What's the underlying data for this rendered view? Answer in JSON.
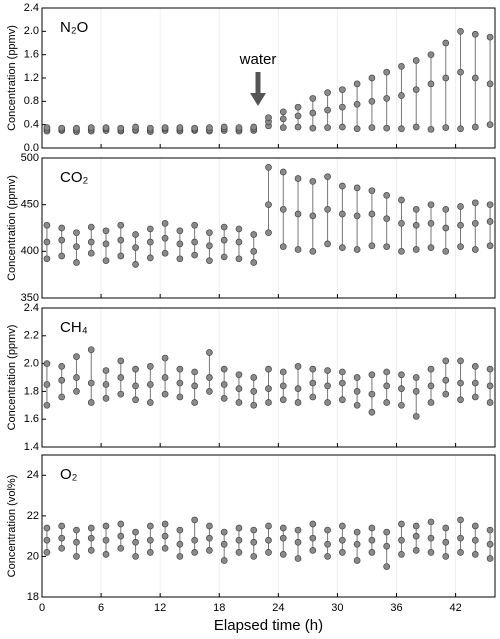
{
  "chart_data": [
    {
      "type": "scatter",
      "label": "N₂O",
      "y_label": "Concentration (ppmv)",
      "annotation": "water",
      "xlim": [
        0,
        46
      ],
      "xticks": [
        0,
        6,
        12,
        18,
        24,
        30,
        36,
        42
      ],
      "ylim": [
        0,
        2.4
      ],
      "yticks": [
        {
          "value": 0,
          "label": "0.0"
        },
        0.4,
        0.8,
        1.2,
        1.6,
        {
          "value": 2,
          "label": "2.0"
        },
        2.4
      ],
      "grid": true,
      "color": "#8a8a8a",
      "x": [
        0.5,
        2,
        3.5,
        5,
        6.5,
        8,
        9.5,
        11,
        12.5,
        14,
        15.5,
        17,
        18.5,
        20,
        21.5,
        23,
        24.5,
        26,
        27.5,
        29,
        30.5,
        32,
        33.5,
        35,
        36.5,
        38,
        39.5,
        41,
        42.5,
        44,
        45.5
      ],
      "values": [
        [
          0.29,
          0.32,
          0.35
        ],
        [
          0.3,
          0.32,
          0.34
        ],
        [
          0.28,
          0.31,
          0.34
        ],
        [
          0.29,
          0.32,
          0.35
        ],
        [
          0.3,
          0.33,
          0.35
        ],
        [
          0.29,
          0.31,
          0.34
        ],
        [
          0.3,
          0.32,
          0.36
        ],
        [
          0.28,
          0.31,
          0.34
        ],
        [
          0.3,
          0.33,
          0.35
        ],
        [
          0.29,
          0.32,
          0.35
        ],
        [
          0.3,
          0.32,
          0.34
        ],
        [
          0.29,
          0.31,
          0.35
        ],
        [
          0.3,
          0.33,
          0.36
        ],
        [
          0.29,
          0.32,
          0.35
        ],
        [
          0.3,
          0.33,
          0.36
        ],
        [
          0.38,
          0.45,
          0.52
        ],
        [
          0.35,
          0.5,
          0.62
        ],
        [
          0.36,
          0.55,
          0.7
        ],
        [
          0.34,
          0.6,
          0.85
        ],
        [
          0.35,
          0.65,
          0.95
        ],
        [
          0.36,
          0.7,
          1.0
        ],
        [
          0.33,
          0.75,
          1.1
        ],
        [
          0.35,
          0.8,
          1.2
        ],
        [
          0.34,
          0.85,
          1.3
        ],
        [
          0.33,
          0.9,
          1.4
        ],
        [
          0.36,
          1.0,
          1.5
        ],
        [
          0.32,
          1.1,
          1.6
        ],
        [
          0.35,
          1.2,
          1.8
        ],
        [
          0.33,
          1.3,
          2.0
        ],
        [
          0.36,
          1.2,
          1.95
        ],
        [
          0.4,
          1.1,
          1.9
        ]
      ]
    },
    {
      "type": "scatter",
      "label": "CO₂",
      "y_label": "Concentration (ppmv)",
      "xlim": [
        0,
        46
      ],
      "xticks": [
        0,
        6,
        12,
        18,
        24,
        30,
        36,
        42
      ],
      "ylim": [
        350,
        500
      ],
      "yticks": [
        350,
        400,
        450,
        500
      ],
      "grid": true,
      "color": "#8a8a8a",
      "x": [
        0.5,
        2,
        3.5,
        5,
        6.5,
        8,
        9.5,
        11,
        12.5,
        14,
        15.5,
        17,
        18.5,
        20,
        21.5,
        23,
        24.5,
        26,
        27.5,
        29,
        30.5,
        32,
        33.5,
        35,
        36.5,
        38,
        39.5,
        41,
        42.5,
        44,
        45.5
      ],
      "values": [
        [
          392,
          410,
          428
        ],
        [
          395,
          412,
          425
        ],
        [
          388,
          405,
          420
        ],
        [
          398,
          410,
          426
        ],
        [
          390,
          408,
          422
        ],
        [
          395,
          412,
          428
        ],
        [
          386,
          404,
          418
        ],
        [
          393,
          410,
          424
        ],
        [
          398,
          414,
          430
        ],
        [
          392,
          408,
          422
        ],
        [
          396,
          410,
          428
        ],
        [
          390,
          406,
          420
        ],
        [
          394,
          412,
          426
        ],
        [
          392,
          410,
          424
        ],
        [
          388,
          400,
          418
        ],
        [
          420,
          450,
          490
        ],
        [
          405,
          445,
          485
        ],
        [
          402,
          440,
          478
        ],
        [
          400,
          438,
          475
        ],
        [
          408,
          445,
          480
        ],
        [
          404,
          440,
          470
        ],
        [
          402,
          438,
          468
        ],
        [
          406,
          440,
          465
        ],
        [
          405,
          435,
          460
        ],
        [
          400,
          430,
          455
        ],
        [
          402,
          428,
          445
        ],
        [
          404,
          430,
          450
        ],
        [
          400,
          425,
          445
        ],
        [
          405,
          428,
          448
        ],
        [
          402,
          430,
          452
        ],
        [
          406,
          432,
          450
        ]
      ]
    },
    {
      "type": "scatter",
      "label": "CH₄",
      "y_label": "Concentration (ppmv)",
      "xlim": [
        0,
        46
      ],
      "xticks": [
        0,
        6,
        12,
        18,
        24,
        30,
        36,
        42
      ],
      "ylim": [
        1.4,
        2.4
      ],
      "yticks": [
        1.4,
        1.6,
        1.8,
        {
          "value": 2,
          "label": "2.0"
        },
        2.2,
        2.4
      ],
      "grid": true,
      "color": "#8a8a8a",
      "x": [
        0.5,
        2,
        3.5,
        5,
        6.5,
        8,
        9.5,
        11,
        12.5,
        14,
        15.5,
        17,
        18.5,
        20,
        21.5,
        23,
        24.5,
        26,
        27.5,
        29,
        30.5,
        32,
        33.5,
        35,
        36.5,
        38,
        39.5,
        41,
        42.5,
        44,
        45.5
      ],
      "values": [
        [
          1.7,
          1.85,
          2.0
        ],
        [
          1.76,
          1.88,
          1.98
        ],
        [
          1.8,
          1.9,
          2.05
        ],
        [
          1.72,
          1.86,
          2.1
        ],
        [
          1.75,
          1.85,
          1.95
        ],
        [
          1.78,
          1.9,
          2.02
        ],
        [
          1.74,
          1.84,
          1.96
        ],
        [
          1.72,
          1.85,
          1.98
        ],
        [
          1.78,
          1.9,
          2.04
        ],
        [
          1.76,
          1.86,
          1.96
        ],
        [
          1.72,
          1.84,
          1.94
        ],
        [
          1.8,
          1.9,
          2.08
        ],
        [
          1.75,
          1.85,
          1.96
        ],
        [
          1.72,
          1.82,
          1.92
        ],
        [
          1.7,
          1.8,
          1.9
        ],
        [
          1.72,
          1.82,
          1.96
        ],
        [
          1.74,
          1.84,
          1.94
        ],
        [
          1.72,
          1.82,
          1.98
        ],
        [
          1.76,
          1.86,
          1.96
        ],
        [
          1.72,
          1.84,
          1.95
        ],
        [
          1.74,
          1.86,
          1.94
        ],
        [
          1.7,
          1.8,
          1.9
        ],
        [
          1.65,
          1.78,
          1.92
        ],
        [
          1.72,
          1.84,
          1.94
        ],
        [
          1.7,
          1.82,
          1.92
        ],
        [
          1.62,
          1.8,
          1.9
        ],
        [
          1.72,
          1.84,
          1.96
        ],
        [
          1.78,
          1.88,
          2.02
        ],
        [
          1.74,
          1.86,
          2.02
        ],
        [
          1.76,
          1.86,
          1.98
        ],
        [
          1.72,
          1.84,
          1.96
        ]
      ]
    },
    {
      "type": "scatter",
      "label": "O₂",
      "y_label": "Concentration (vol%)",
      "x_label": "Elapsed time (h)",
      "xlim": [
        0,
        46
      ],
      "xticks": [
        0,
        6,
        12,
        18,
        24,
        30,
        36,
        42
      ],
      "ylim": [
        18,
        25
      ],
      "yticks": [
        18,
        20,
        22,
        24
      ],
      "grid": true,
      "color": "#8a8a8a",
      "x": [
        0.5,
        2,
        3.5,
        5,
        6.5,
        8,
        9.5,
        11,
        12.5,
        14,
        15.5,
        17,
        18.5,
        20,
        21.5,
        23,
        24.5,
        26,
        27.5,
        29,
        30.5,
        32,
        33.5,
        35,
        36.5,
        38,
        39.5,
        41,
        42.5,
        44,
        45.5
      ],
      "values": [
        [
          20.2,
          20.8,
          21.4
        ],
        [
          20.4,
          20.9,
          21.5
        ],
        [
          20.0,
          20.7,
          21.3
        ],
        [
          20.3,
          20.9,
          21.4
        ],
        [
          20.1,
          20.8,
          21.5
        ],
        [
          20.4,
          21.0,
          21.6
        ],
        [
          20.0,
          20.7,
          21.2
        ],
        [
          20.2,
          20.8,
          21.5
        ],
        [
          20.4,
          21.0,
          21.6
        ],
        [
          20.0,
          20.6,
          21.3
        ],
        [
          20.2,
          20.8,
          21.8
        ],
        [
          20.3,
          20.9,
          21.5
        ],
        [
          19.8,
          20.6,
          21.2
        ],
        [
          20.2,
          20.8,
          21.4
        ],
        [
          20.0,
          20.7,
          21.3
        ],
        [
          20.2,
          20.8,
          21.5
        ],
        [
          20.1,
          20.9,
          21.4
        ],
        [
          19.9,
          20.7,
          21.3
        ],
        [
          20.3,
          20.9,
          21.6
        ],
        [
          20.0,
          20.6,
          21.3
        ],
        [
          20.2,
          20.8,
          21.5
        ],
        [
          19.8,
          20.6,
          21.2
        ],
        [
          20.2,
          20.8,
          21.4
        ],
        [
          19.5,
          20.5,
          21.2
        ],
        [
          20.1,
          20.8,
          21.6
        ],
        [
          20.3,
          21.0,
          21.5
        ],
        [
          20.2,
          20.9,
          21.7
        ],
        [
          20.0,
          20.7,
          21.4
        ],
        [
          20.2,
          20.9,
          21.8
        ],
        [
          20.1,
          20.8,
          21.5
        ],
        [
          19.9,
          20.6,
          21.3
        ]
      ]
    }
  ]
}
